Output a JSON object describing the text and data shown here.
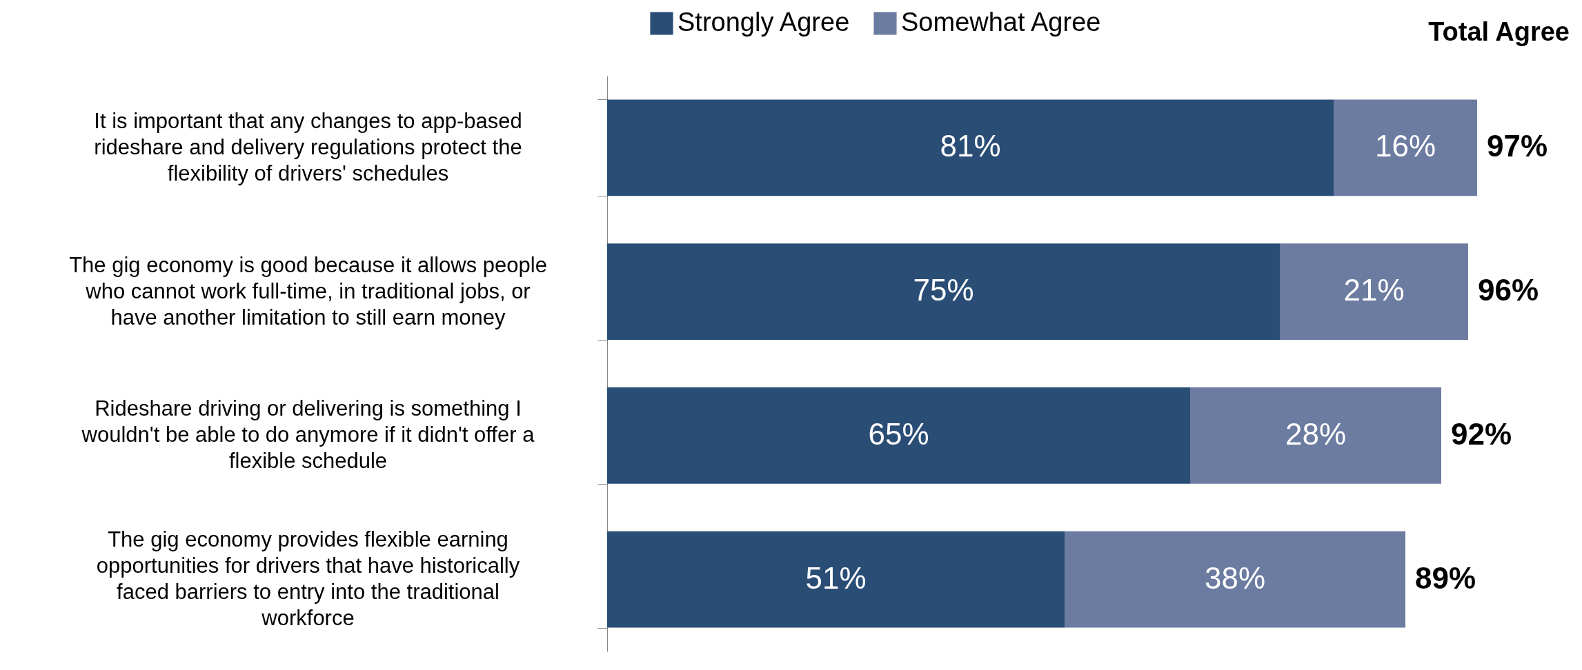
{
  "chart_data": {
    "type": "bar",
    "orientation": "horizontal",
    "stacked": true,
    "legend": "top",
    "categories": [
      "It is important that any changes to app-based rideshare and delivery regulations protect the flexibility of drivers' schedules",
      "The gig economy is good because it allows people who cannot work full-time, in traditional jobs, or have another limitation to still earn money",
      "Rideshare driving or delivering is something I wouldn't be able to do anymore if it didn't offer a flexible schedule",
      "The gig economy provides flexible earning opportunities for drivers that have historically faced barriers to entry into the traditional workforce"
    ],
    "series": [
      {
        "name": "Strongly Agree",
        "color": "#2a4d76",
        "values": [
          81,
          75,
          65,
          51
        ],
        "value_labels": [
          "81%",
          "75%",
          "65%",
          "51%"
        ]
      },
      {
        "name": "Somewhat Agree",
        "color": "#6c7ba0",
        "values": [
          16,
          21,
          28,
          38
        ],
        "value_labels": [
          "16%",
          "21%",
          "28%",
          "38%"
        ]
      }
    ],
    "totals": [
      "97%",
      "96%",
      "92%",
      "89%"
    ],
    "annotations": [
      "Total Agree"
    ]
  }
}
